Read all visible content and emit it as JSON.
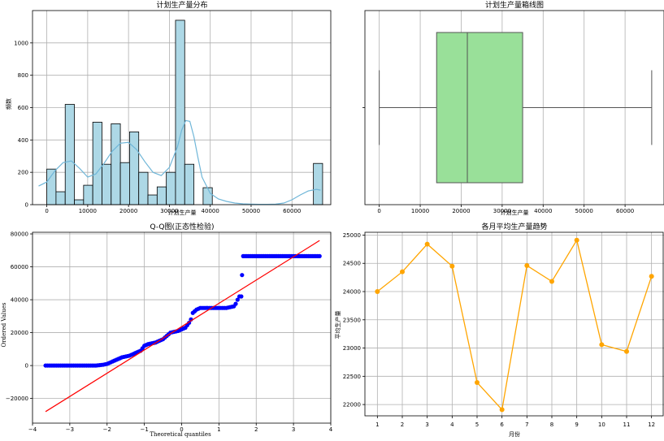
{
  "chart_data": [
    {
      "type": "bar",
      "title": "计划生产量分布",
      "xlabel": "计划生产量",
      "ylabel": "频数",
      "xlim": [
        -3500,
        69500
      ],
      "ylim": [
        0,
        1200
      ],
      "xticks": [
        0,
        10000,
        20000,
        30000,
        40000,
        50000,
        60000
      ],
      "yticks": [
        0,
        200,
        400,
        600,
        800,
        1000
      ],
      "bin_width": 2250,
      "bin_start": 0,
      "counts": [
        220,
        80,
        620,
        30,
        120,
        510,
        250,
        500,
        260,
        450,
        200,
        60,
        110,
        200,
        1140,
        250,
        0,
        105,
        0,
        0,
        0,
        0,
        0,
        0,
        0,
        0,
        0,
        0,
        0,
        255
      ],
      "kde_x": [
        -2000,
        0,
        2000,
        4000,
        6000,
        8000,
        10000,
        12000,
        14000,
        16000,
        18000,
        20000,
        22000,
        24000,
        26000,
        28000,
        30000,
        32000,
        33000,
        34000,
        35000,
        36000,
        37000,
        38000,
        40000,
        42000,
        44000,
        46000,
        48000,
        50000,
        52000,
        54000,
        56000,
        58000,
        60000,
        62000,
        64000,
        66000,
        67000
      ],
      "kde_y": [
        115,
        140,
        210,
        260,
        270,
        225,
        170,
        190,
        255,
        330,
        380,
        385,
        340,
        265,
        200,
        180,
        230,
        360,
        460,
        520,
        515,
        420,
        290,
        170,
        70,
        35,
        20,
        10,
        5,
        3,
        2,
        2,
        3,
        10,
        30,
        60,
        85,
        95,
        90
      ],
      "colors": {
        "bar_fill": "#add8e6",
        "bar_edge": "#000000",
        "kde": "#6fb6d8"
      }
    },
    {
      "type": "box",
      "title": "计划生产量箱线图",
      "xlabel": "计划生产量",
      "xlim": [
        -3500,
        69500
      ],
      "xticks": [
        0,
        10000,
        20000,
        30000,
        40000,
        50000,
        60000
      ],
      "whisker_low": 0,
      "q1": 14000,
      "median": 21500,
      "q3": 35000,
      "whisker_high": 66500,
      "colors": {
        "box_fill": "#99e099",
        "box_edge": "#555555"
      }
    },
    {
      "type": "scatter",
      "title": "Q-Q图(正态性检验)",
      "xlabel": "Theoretical quantiles",
      "ylabel": "Ordered Values",
      "xlim": [
        -4,
        4
      ],
      "ylim": [
        -35000,
        81000
      ],
      "xticks": [
        -4,
        -3,
        -2,
        -1,
        0,
        1,
        2,
        3,
        4
      ],
      "yticks": [
        -20000,
        0,
        20000,
        40000,
        60000,
        80000
      ],
      "sample_x": [
        -3.65,
        -3.3,
        -3.1,
        -2.9,
        -2.7,
        -2.5,
        -2.3,
        -2.1,
        -2.0,
        -1.9,
        -1.8,
        -1.7,
        -1.6,
        -1.5,
        -1.4,
        -1.3,
        -1.2,
        -1.1,
        -1.0,
        -0.9,
        -0.8,
        -0.7,
        -0.6,
        -0.5,
        -0.4,
        -0.3,
        -0.2,
        -0.1,
        0.0,
        0.1,
        0.2,
        0.25,
        0.3,
        0.4,
        0.5,
        0.6,
        0.7,
        0.8,
        0.9,
        1.0,
        1.1,
        1.2,
        1.3,
        1.4,
        1.45,
        1.5,
        1.55,
        1.6,
        1.62,
        1.65,
        1.7,
        1.9,
        2.1,
        2.3,
        2.5,
        2.7,
        2.9,
        3.0,
        3.1,
        3.25,
        3.3,
        3.4,
        3.7
      ],
      "sample_y": [
        0,
        0,
        0,
        0,
        0,
        0,
        0,
        500,
        1000,
        2000,
        3000,
        4000,
        5000,
        5500,
        6000,
        7000,
        8000,
        9000,
        12000,
        13000,
        13500,
        14000,
        15000,
        16000,
        18000,
        20000,
        20500,
        21000,
        22000,
        23000,
        26000,
        28000,
        32000,
        34000,
        35000,
        35000,
        35000,
        35000,
        35000,
        35000,
        35000,
        35000,
        35500,
        36000,
        37500,
        40000,
        42000,
        42000,
        55000,
        66500,
        66500,
        66500,
        66500,
        66500,
        66500,
        66500,
        66500,
        66500,
        66500,
        66500,
        66500,
        66500,
        66500
      ],
      "fit_line": {
        "x": [
          -3.65,
          3.7
        ],
        "y": [
          -28000,
          76000
        ]
      },
      "colors": {
        "points": "#0000ff",
        "fit_line": "#ff0000"
      }
    },
    {
      "type": "line",
      "title": "各月平均生产量趋势",
      "xlabel": "月份",
      "ylabel": "平均生产量",
      "categories": [
        "1",
        "2",
        "3",
        "4",
        "5",
        "6",
        "7",
        "8",
        "9",
        "10",
        "11",
        "12"
      ],
      "values": [
        24000,
        24350,
        24840,
        24450,
        22390,
        21910,
        24460,
        24180,
        24910,
        23060,
        22940,
        24270
      ],
      "xlim": [
        0.5,
        12.5
      ],
      "ylim": [
        21800,
        25050
      ],
      "yticks": [
        22000,
        22500,
        23000,
        23500,
        24000,
        24500,
        25000
      ],
      "colors": {
        "line": "#ffa500",
        "marker": "#ffa500"
      }
    }
  ]
}
